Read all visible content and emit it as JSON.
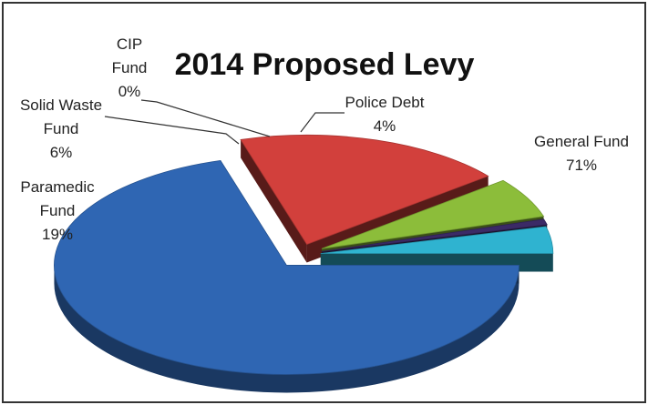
{
  "chart_data": {
    "type": "pie",
    "title": "2014 Proposed Levy",
    "slices": [
      {
        "label": "General Fund",
        "label_lines": [
          "General Fund",
          "71%"
        ],
        "value": 71,
        "color": "#2f66b3"
      },
      {
        "label": "Paramedic Fund",
        "label_lines": [
          "Paramedic",
          "Fund",
          "19%"
        ],
        "value": 19,
        "color": "#d2403c"
      },
      {
        "label": "Solid Waste Fund",
        "label_lines": [
          "Solid Waste",
          "Fund",
          "6%"
        ],
        "value": 6,
        "color": "#8cbd3a"
      },
      {
        "label": "CIP Fund",
        "label_lines": [
          "CIP",
          "Fund",
          "0%"
        ],
        "value": 0,
        "color": "#3b2a66"
      },
      {
        "label": "Police Debt",
        "label_lines": [
          "Police Debt",
          "4%"
        ],
        "value": 4,
        "color": "#2fb3d0"
      }
    ],
    "style": "3d-exploded",
    "legend": "none"
  }
}
